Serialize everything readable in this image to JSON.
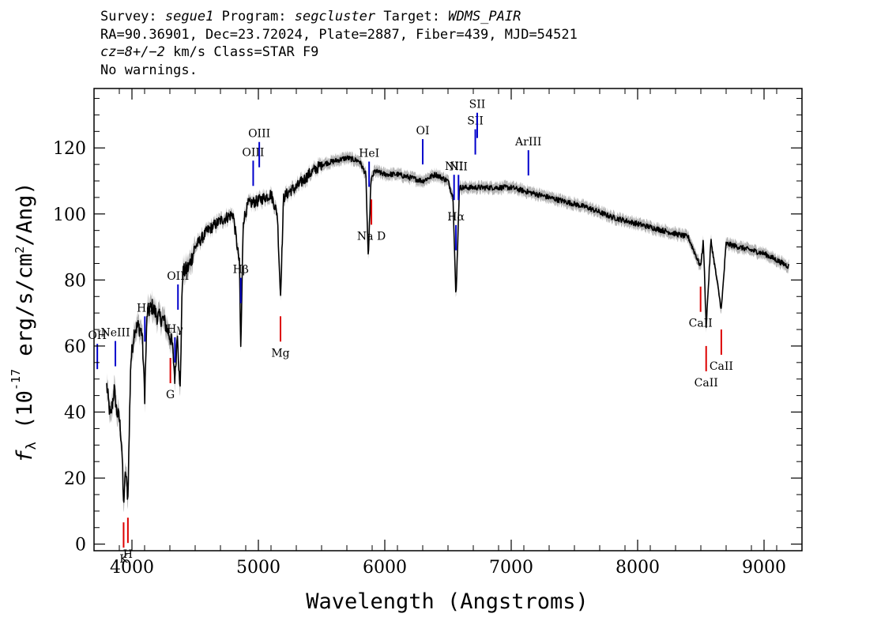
{
  "header": {
    "survey_label": "Survey:",
    "survey": "segue1",
    "program_label": "Program:",
    "program": "segcluster",
    "target_label": "Target:",
    "target": "WDMS_PAIR",
    "line2": "RA=90.36901, Dec=23.72024, Plate=2887, Fiber=439, MJD=54521",
    "cz_label": "cz=",
    "cz_value": "8+/−2",
    "cz_units": "km/s",
    "class_text": "Class=STAR F9",
    "line4": "No warnings."
  },
  "chart_data": {
    "type": "line",
    "xlabel": "Wavelength (Angstroms)",
    "ylabel": "f_λ (10^-17 erg/s/cm^2/Ang)",
    "xlim": [
      3700,
      9300
    ],
    "ylim": [
      -2,
      138
    ],
    "x_ticks": [
      4000,
      5000,
      6000,
      7000,
      8000,
      9000
    ],
    "y_ticks": [
      0,
      20,
      40,
      60,
      80,
      100,
      120
    ],
    "colors": {
      "spectrum": "#000000",
      "error": "#b4b4b4",
      "emission": "#0000cc",
      "absorption": "#dd0000"
    },
    "series": [
      {
        "x": [
          3800,
          3830,
          3860,
          3880,
          3900,
          3920,
          3933,
          3950,
          3968,
          3990,
          4020,
          4050,
          4080,
          4101,
          4120,
          4160,
          4200,
          4250,
          4300,
          4320,
          4340,
          4360,
          4380,
          4400,
          4450,
          4500,
          4600,
          4700,
          4800,
          4850,
          4861,
          4880,
          4920,
          5000,
          5100,
          5150,
          5175,
          5200,
          5250,
          5300,
          5400,
          5500,
          5600,
          5700,
          5800,
          5850,
          5870,
          5890,
          5920,
          6000,
          6100,
          6200,
          6300,
          6400,
          6500,
          6540,
          6563,
          6590,
          6700,
          6800,
          7000,
          7200,
          7400,
          7600,
          7800,
          8000,
          8200,
          8400,
          8498,
          8520,
          8542,
          8580,
          8662,
          8700,
          8800,
          9000,
          9100,
          9200
        ],
        "values": [
          48,
          38,
          47,
          40,
          38,
          30,
          12,
          22,
          14,
          55,
          65,
          66,
          64,
          45,
          70,
          72,
          69,
          68,
          63,
          60,
          50,
          65,
          45,
          82,
          84,
          90,
          95,
          98,
          100,
          85,
          58,
          98,
          103,
          104,
          106,
          100,
          75,
          105,
          107,
          108,
          112,
          115,
          116,
          117,
          116,
          112,
          86,
          110,
          113,
          112,
          112,
          111,
          110,
          112,
          110,
          105,
          74,
          108,
          108,
          108,
          108,
          106,
          104,
          102,
          99,
          97,
          95,
          93,
          84,
          92,
          66,
          92,
          71,
          91,
          90,
          88,
          86,
          84
        ]
      }
    ],
    "lines": [
      {
        "label": "OH",
        "wavelength": 3726,
        "kind": "emission"
      },
      {
        "label": "NeIII",
        "wavelength": 3869,
        "kind": "emission"
      },
      {
        "label": "Hδ",
        "wavelength": 4102,
        "kind": "emission"
      },
      {
        "label": "Hγ",
        "wavelength": 4340,
        "kind": "emission"
      },
      {
        "label": "OIII",
        "wavelength": 4364,
        "kind": "emission"
      },
      {
        "label": "Hβ",
        "wavelength": 4861,
        "kind": "emission"
      },
      {
        "label": "OIII",
        "wavelength": 4959,
        "kind": "emission"
      },
      {
        "label": "OIII",
        "wavelength": 5007,
        "kind": "emission"
      },
      {
        "label": "HeI",
        "wavelength": 5876,
        "kind": "emission"
      },
      {
        "label": "OI",
        "wavelength": 6300,
        "kind": "emission"
      },
      {
        "label": "NII",
        "wavelength": 6548,
        "kind": "emission"
      },
      {
        "label": "Hα",
        "wavelength": 6563,
        "kind": "emission"
      },
      {
        "label": "NII",
        "wavelength": 6583,
        "kind": "emission"
      },
      {
        "label": "SII",
        "wavelength": 6716,
        "kind": "emission"
      },
      {
        "label": "SII",
        "wavelength": 6731,
        "kind": "emission"
      },
      {
        "label": "ArIII",
        "wavelength": 7136,
        "kind": "emission"
      },
      {
        "label": "K",
        "wavelength": 3934,
        "kind": "absorption"
      },
      {
        "label": "H",
        "wavelength": 3968,
        "kind": "absorption"
      },
      {
        "label": "G",
        "wavelength": 4304,
        "kind": "absorption"
      },
      {
        "label": "Mg",
        "wavelength": 5175,
        "kind": "absorption"
      },
      {
        "label": "Na D",
        "wavelength": 5894,
        "kind": "absorption"
      },
      {
        "label": "CaII",
        "wavelength": 8498,
        "kind": "absorption"
      },
      {
        "label": "CaII",
        "wavelength": 8542,
        "kind": "absorption"
      },
      {
        "label": "CaII",
        "wavelength": 8662,
        "kind": "absorption"
      }
    ]
  }
}
